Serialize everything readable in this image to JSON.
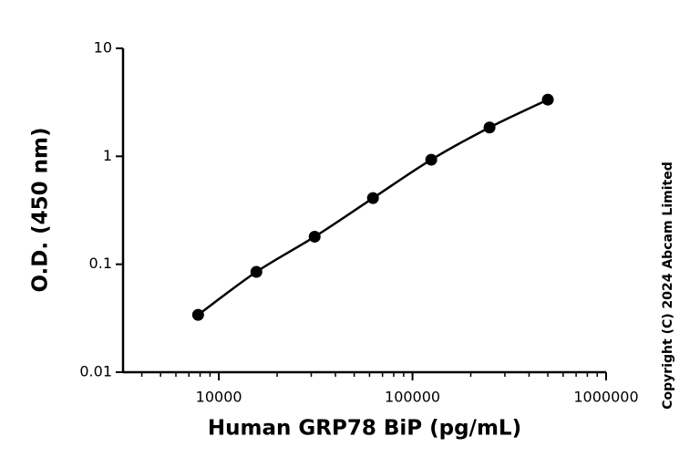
{
  "chart_data": {
    "type": "scatter",
    "x_label": "Human GRP78 BiP (pg/mL)",
    "y_label": "O.D. (450 nm)",
    "annotation": "Copyright (C) 2024 Abcam Limited",
    "series": [
      {
        "color": "#000000",
        "x": [
          7812.5,
          15625,
          31250,
          62500,
          125000,
          250000,
          500000
        ],
        "values": [
          0.034,
          0.085,
          0.18,
          0.41,
          0.93,
          1.85,
          3.35
        ]
      }
    ],
    "xscale": "log",
    "yscale": "log",
    "xlim": [
      3200,
      1000000
    ],
    "ylim": [
      0.01,
      10
    ],
    "xticks": [
      10000,
      100000,
      1000000
    ],
    "xminorticks": [
      4000,
      5000,
      6000,
      7000,
      8000,
      9000,
      20000,
      30000,
      40000,
      50000,
      60000,
      70000,
      80000,
      90000,
      200000,
      300000,
      400000,
      500000,
      600000,
      700000,
      800000,
      900000
    ],
    "yticks": [
      0.01,
      0.1,
      1,
      10
    ],
    "grid": false,
    "fit_curve": true
  }
}
